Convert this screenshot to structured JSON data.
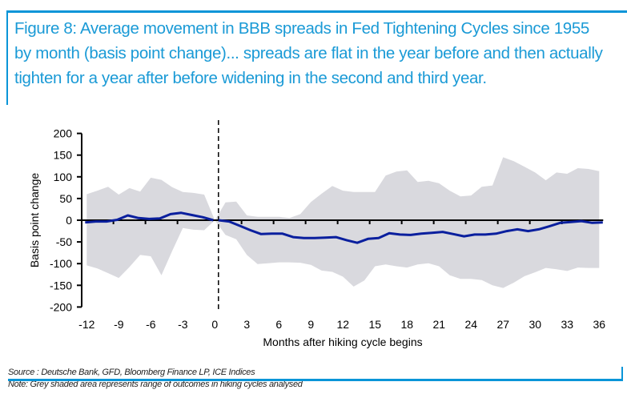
{
  "figure": {
    "title": "Figure 8: Average movement in BBB spreads in Fed Tightening Cycles since 1955 by month (basis point change)... spreads are flat in the year before and then actually tighten for a year after before widening in the second and third year.",
    "source": "Source : Deutsche Bank, GFD, Bloomberg Finance LP, ICE Indices",
    "note": "Note: Grey shaded area represents range of outcomes in hiking cycles analysed"
  },
  "colors": {
    "accent": "#0a95d8",
    "title_text": "#1a9ad6",
    "mean_line": "#0a1f9e",
    "range_band": "#d9d9de",
    "axis": "#000000"
  },
  "chart_data": {
    "type": "line",
    "title": "Average movement in BBB spreads in Fed Tightening Cycles since 1955 by month",
    "xlabel": "Months after hiking cycle begins",
    "ylabel": "Basis point change",
    "xlim": [
      -12,
      36
    ],
    "ylim": [
      -200,
      200
    ],
    "xticks": [
      -12,
      -9,
      -6,
      -3,
      0,
      3,
      6,
      9,
      12,
      15,
      18,
      21,
      24,
      27,
      30,
      33,
      36
    ],
    "yticks": [
      200,
      150,
      100,
      50,
      0,
      -50,
      -100,
      -150,
      -200
    ],
    "grid": false,
    "legend": "none",
    "vertical_marker": {
      "x": 0,
      "style": "dashed",
      "meaning": "hiking cycle begins"
    },
    "x": [
      -12,
      -11,
      -10,
      -9,
      -8,
      -7,
      -6,
      -5,
      -4,
      -3,
      -2,
      -1,
      0,
      1,
      2,
      3,
      4,
      5,
      6,
      7,
      8,
      9,
      10,
      11,
      12,
      13,
      14,
      15,
      16,
      17,
      18,
      19,
      20,
      21,
      22,
      23,
      24,
      25,
      26,
      27,
      28,
      29,
      30,
      31,
      32,
      33,
      34,
      35,
      36
    ],
    "series": [
      {
        "name": "Average BBB spread change",
        "kind": "line",
        "values": [
          -5,
          -3,
          -3,
          1,
          11,
          5,
          3,
          4,
          14,
          17,
          12,
          7,
          0,
          -3,
          -13,
          -23,
          -32,
          -31,
          -31,
          -39,
          -41,
          -41,
          -40,
          -39,
          -46,
          -52,
          -43,
          -41,
          -30,
          -33,
          -34,
          -31,
          -29,
          -27,
          -32,
          -37,
          -33,
          -33,
          -31,
          -25,
          -21,
          -25,
          -21,
          -14,
          -6,
          -4,
          -2,
          -6,
          -5
        ]
      },
      {
        "name": "Range upper bound",
        "kind": "band-upper",
        "values": [
          60,
          68,
          77,
          59,
          74,
          66,
          98,
          93,
          76,
          65,
          63,
          59,
          0,
          41,
          43,
          11,
          8,
          8,
          8,
          5,
          14,
          42,
          61,
          79,
          68,
          65,
          65,
          65,
          103,
          112,
          115,
          88,
          91,
          85,
          68,
          55,
          57,
          77,
          80,
          145,
          136,
          123,
          110,
          92,
          110,
          107,
          120,
          118,
          113
        ]
      },
      {
        "name": "Range lower bound",
        "kind": "band-lower",
        "values": [
          -104,
          -111,
          -122,
          -133,
          -108,
          -80,
          -83,
          -127,
          -71,
          -18,
          -22,
          -23,
          0,
          -34,
          -44,
          -80,
          -101,
          -99,
          -97,
          -97,
          -98,
          -103,
          -116,
          -119,
          -130,
          -153,
          -139,
          -106,
          -102,
          -106,
          -109,
          -102,
          -99,
          -106,
          -127,
          -135,
          -135,
          -138,
          -150,
          -156,
          -144,
          -129,
          -120,
          -110,
          -113,
          -117,
          -109,
          -110,
          -110
        ]
      }
    ]
  }
}
